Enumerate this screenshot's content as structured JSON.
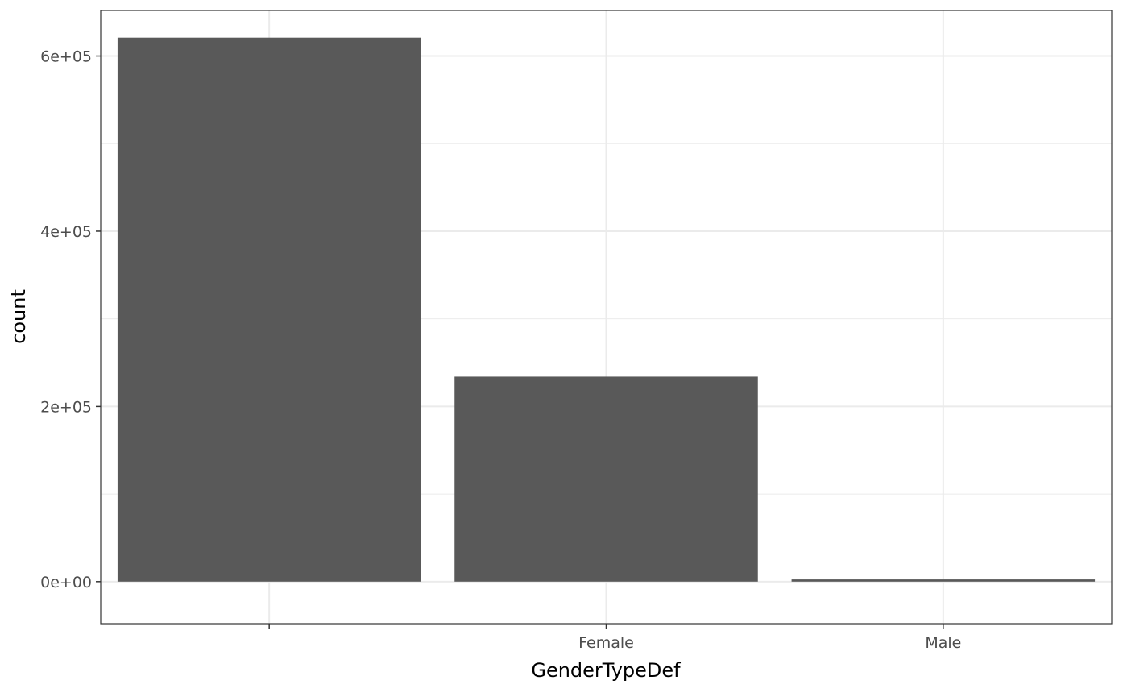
{
  "chart_data": {
    "type": "bar",
    "categories": [
      "",
      "Female",
      "Male"
    ],
    "values": [
      621000,
      234000,
      2500
    ],
    "xlabel": "GenderTypeDef",
    "ylabel": "count",
    "ylim": [
      -48000,
      652000
    ],
    "yticks": [
      {
        "value": 0,
        "label": "0e+00"
      },
      {
        "value": 200000,
        "label": "2e+05"
      },
      {
        "value": 400000,
        "label": "4e+05"
      },
      {
        "value": 600000,
        "label": "6e+05"
      }
    ],
    "minor_yticks": [
      100000,
      300000,
      500000
    ],
    "grid": true,
    "bar_color": "#595959",
    "grid_color": "#ebebeb",
    "panel_border_color": "#333333"
  }
}
